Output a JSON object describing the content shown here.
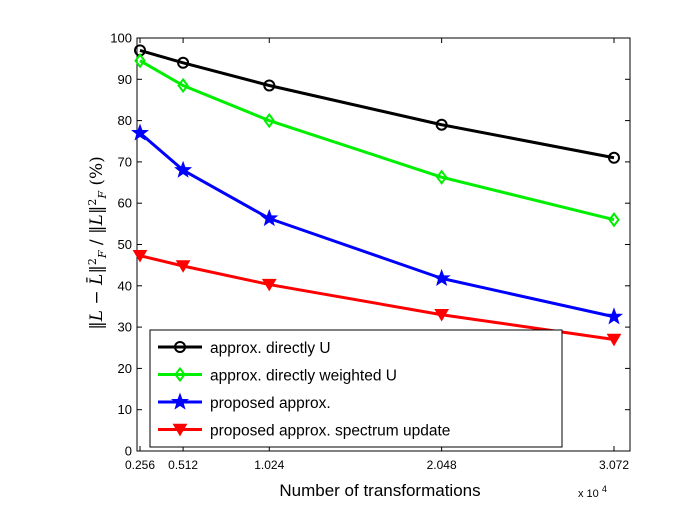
{
  "chart_data": {
    "type": "line",
    "title": "",
    "xlabel": "Number of transformations",
    "ylabel": "‖L − L̄‖²F / ‖L‖²F (%)",
    "x_multiplier_label": "x 10",
    "x_multiplier_exponent": "4",
    "x": [
      0.256,
      0.512,
      1.024,
      2.048,
      3.072
    ],
    "x_tick_labels": [
      "0.256",
      "0.512",
      "1.024",
      "2.048",
      "3.072"
    ],
    "xlim": [
      0.256,
      3.072
    ],
    "ylim": [
      0,
      100
    ],
    "y_ticks": [
      0,
      10,
      20,
      30,
      40,
      50,
      60,
      70,
      80,
      90,
      100
    ],
    "grid": false,
    "legend_position": "bottom-left",
    "series": [
      {
        "name": "approx. directly U",
        "color": "#000000",
        "marker": "circle",
        "values": [
          97,
          94,
          88.5,
          79,
          71
        ]
      },
      {
        "name": "approx. directly weighted U",
        "color": "#00ee00",
        "marker": "diamond",
        "values": [
          94.5,
          88.5,
          80,
          66.3,
          56
        ]
      },
      {
        "name": "proposed approx.",
        "color": "#0000ff",
        "marker": "star",
        "values": [
          77,
          68,
          56.3,
          41.8,
          32.5
        ]
      },
      {
        "name": "proposed approx. spectrum update",
        "color": "#ff0000",
        "marker": "triangle-down",
        "values": [
          47.3,
          44.8,
          40.3,
          33,
          27
        ]
      }
    ]
  }
}
